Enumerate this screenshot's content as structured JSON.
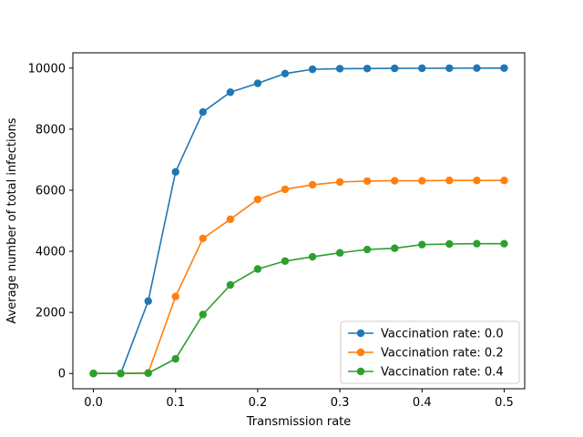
{
  "chart_data": {
    "type": "line",
    "title": "",
    "xlabel": "Transmission rate",
    "ylabel": "Average number of total infections",
    "xlim": [
      -0.025,
      0.525
    ],
    "ylim": [
      -500,
      10500
    ],
    "xticks": [
      0.0,
      0.1,
      0.2,
      0.3,
      0.4,
      0.5
    ],
    "xtick_labels": [
      "0.0",
      "0.1",
      "0.2",
      "0.3",
      "0.4",
      "0.5"
    ],
    "yticks": [
      0,
      2000,
      4000,
      6000,
      8000,
      10000
    ],
    "ytick_labels": [
      "0",
      "2000",
      "4000",
      "6000",
      "8000",
      "10000"
    ],
    "grid": false,
    "legend_position": "lower-right",
    "x": [
      0.0,
      0.0333,
      0.0667,
      0.1,
      0.1333,
      0.1667,
      0.2,
      0.2333,
      0.2667,
      0.3,
      0.3333,
      0.3667,
      0.4,
      0.4333,
      0.4667,
      0.5
    ],
    "series": [
      {
        "name": "Vaccination rate: 0.0",
        "color": "#1f77b4",
        "values": [
          0,
          0,
          2370,
          6600,
          8560,
          9210,
          9500,
          9820,
          9960,
          9980,
          9985,
          9990,
          9993,
          9996,
          9998,
          10000
        ]
      },
      {
        "name": "Vaccination rate: 0.2",
        "color": "#ff7f0e",
        "values": [
          0,
          0,
          20,
          2520,
          4420,
          5050,
          5700,
          6030,
          6180,
          6270,
          6300,
          6310,
          6310,
          6320,
          6320,
          6320
        ]
      },
      {
        "name": "Vaccination rate: 0.4",
        "color": "#2ca02c",
        "values": [
          0,
          0,
          10,
          480,
          1930,
          2900,
          3420,
          3680,
          3820,
          3950,
          4060,
          4100,
          4220,
          4240,
          4250,
          4250
        ]
      }
    ]
  }
}
